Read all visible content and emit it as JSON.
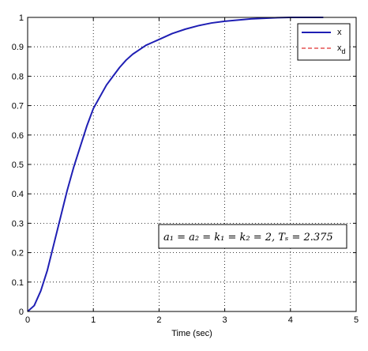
{
  "chart_data": {
    "type": "line",
    "xlabel": "Time (sec)",
    "ylabel": "",
    "title": "",
    "xlim": [
      0,
      5
    ],
    "ylim": [
      0,
      1
    ],
    "xticks": [
      "0",
      "1",
      "2",
      "3",
      "4",
      "5"
    ],
    "yticks": [
      "0",
      "0.1",
      "0.2",
      "0.3",
      "0.4",
      "0.5",
      "0.6",
      "0.7",
      "0.8",
      "0.9",
      "1"
    ],
    "grid": true,
    "legend_position": "top-right",
    "series": [
      {
        "name": "x",
        "color": "#1f1fb4",
        "style": "solid",
        "x": [
          0,
          0.1,
          0.2,
          0.3,
          0.4,
          0.5,
          0.6,
          0.7,
          0.8,
          0.9,
          1.0,
          1.1,
          1.2,
          1.3,
          1.4,
          1.5,
          1.6,
          1.7,
          1.8,
          1.9,
          2.0,
          2.2,
          2.4,
          2.6,
          2.8,
          3.0,
          3.2,
          3.4,
          3.6,
          3.8,
          4.0,
          4.2,
          4.5
        ],
        "y": [
          0,
          0.02,
          0.07,
          0.14,
          0.23,
          0.32,
          0.41,
          0.49,
          0.56,
          0.63,
          0.69,
          0.73,
          0.77,
          0.8,
          0.83,
          0.855,
          0.875,
          0.89,
          0.905,
          0.915,
          0.925,
          0.945,
          0.96,
          0.972,
          0.981,
          0.987,
          0.991,
          0.995,
          0.997,
          0.999,
          1.0,
          1.0,
          1.0
        ]
      },
      {
        "name": "x",
        "legend_subscript": "d",
        "color": "#e03030",
        "style": "dashed",
        "x": [
          0,
          0.1,
          0.2,
          0.3,
          0.4,
          0.5,
          0.6,
          0.7,
          0.8,
          0.9,
          1.0,
          1.1,
          1.2,
          1.3,
          1.4,
          1.5,
          1.6,
          1.7,
          1.8,
          1.9,
          2.0,
          2.2,
          2.4,
          2.6,
          2.8,
          3.0,
          3.2,
          3.4,
          3.6,
          3.8,
          4.0,
          4.2,
          4.5
        ],
        "y": [
          0,
          0.02,
          0.07,
          0.14,
          0.23,
          0.32,
          0.41,
          0.49,
          0.56,
          0.63,
          0.69,
          0.73,
          0.77,
          0.8,
          0.83,
          0.855,
          0.875,
          0.89,
          0.905,
          0.915,
          0.925,
          0.945,
          0.96,
          0.972,
          0.981,
          0.987,
          0.991,
          0.995,
          0.997,
          0.999,
          1.0,
          1.0,
          1.0
        ]
      }
    ],
    "annotation": {
      "text": "a₁ = a₂ = k₁ = k₂ = 2, Tₛ = 2.375",
      "box": true
    }
  }
}
